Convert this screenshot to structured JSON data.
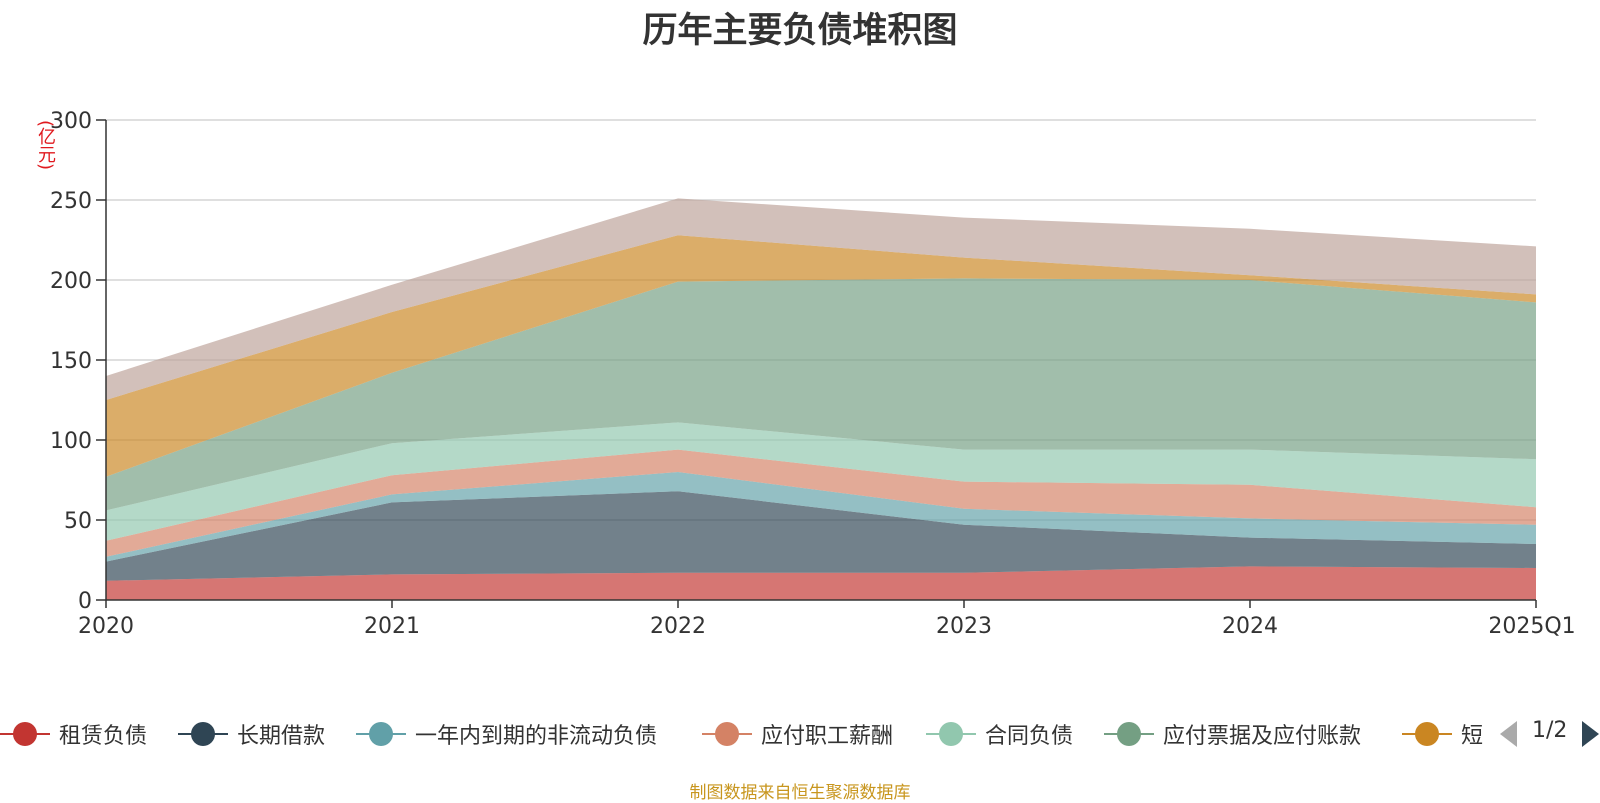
{
  "title": "历年主要负债堆积图",
  "unit": "(亿元)",
  "source_note": "制图数据来自恒生聚源数据库",
  "legend": {
    "items": [
      {
        "label": "租赁负债",
        "color": "#c23531"
      },
      {
        "label": "长期借款",
        "color": "#2f4554"
      },
      {
        "label": "一年内到期的非流动负债",
        "color": "#61a0a8"
      },
      {
        "label": "应付职工薪酬",
        "color": "#d48265"
      },
      {
        "label": "合同负债",
        "color": "#91c7ae"
      },
      {
        "label": "应付票据及应付账款",
        "color": "#749f83"
      },
      {
        "label": "短",
        "color": "#ca8622"
      }
    ],
    "page": "1/2"
  },
  "chart_data": {
    "type": "area",
    "stacked": true,
    "title": "历年主要负债堆积图",
    "ylabel": "(亿元)",
    "ylim": [
      0,
      300
    ],
    "yticks": [
      0,
      50,
      100,
      150,
      200,
      250,
      300
    ],
    "grid": true,
    "legend_position": "bottom",
    "categories": [
      "2020",
      "2021",
      "2022",
      "2023",
      "2024",
      "2025Q1"
    ],
    "series": [
      {
        "name": "租赁负债",
        "color": "#c23531",
        "values": [
          12,
          16,
          17,
          17,
          21,
          20
        ]
      },
      {
        "name": "长期借款",
        "color": "#2f4554",
        "values": [
          12,
          45,
          51,
          30,
          18,
          15
        ]
      },
      {
        "name": "一年内到期的非流动负债",
        "color": "#61a0a8",
        "values": [
          3,
          5,
          12,
          10,
          12,
          12
        ]
      },
      {
        "name": "应付职工薪酬",
        "color": "#d48265",
        "values": [
          10,
          12,
          14,
          17,
          21,
          11
        ]
      },
      {
        "name": "合同负债",
        "color": "#91c7ae",
        "values": [
          19,
          20,
          17,
          20,
          22,
          30
        ]
      },
      {
        "name": "应付票据及应付账款",
        "color": "#749f83",
        "values": [
          21,
          44,
          88,
          107,
          106,
          98
        ]
      },
      {
        "name": "短",
        "color": "#ca8622",
        "values": [
          48,
          38,
          29,
          13,
          3,
          5
        ]
      },
      {
        "color": "#bda29a",
        "values": [
          15,
          17,
          23,
          25,
          29,
          30
        ]
      }
    ]
  }
}
